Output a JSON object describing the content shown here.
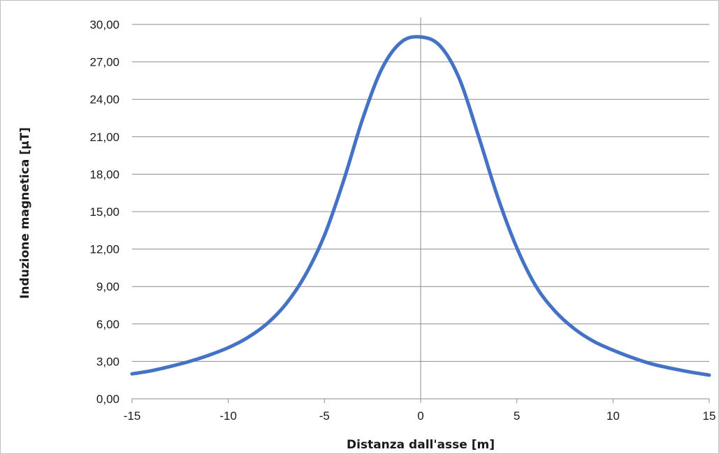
{
  "chart_data": {
    "type": "line",
    "title": "",
    "xlabel": "Distanza dall'asse [m]",
    "ylabel": "Induzione magnetica [µT]",
    "xlim": [
      -15,
      15
    ],
    "ylim": [
      0,
      30
    ],
    "x_ticks": [
      -15,
      -10,
      -5,
      0,
      5,
      10,
      15
    ],
    "x_tick_labels": [
      "-15",
      "-10",
      "-5",
      "0",
      "5",
      "10",
      "15"
    ],
    "y_ticks": [
      0,
      3,
      6,
      9,
      12,
      15,
      18,
      21,
      24,
      27,
      30
    ],
    "y_tick_labels": [
      "0,00",
      "3,00",
      "6,00",
      "9,00",
      "12,00",
      "15,00",
      "18,00",
      "21,00",
      "24,00",
      "27,00",
      "30,00"
    ],
    "grid": "horizontal",
    "legend": "none",
    "series_color": "#4472c4",
    "series": [
      {
        "x": [
          -15,
          -14,
          -13,
          -12,
          -11,
          -10,
          -9,
          -8,
          -7,
          -6,
          -5,
          -4,
          -3,
          -2,
          -1,
          0,
          1,
          2,
          3,
          4,
          5,
          6,
          7,
          8,
          9,
          10,
          11,
          12,
          13,
          14,
          15
        ],
        "values": [
          2.0,
          2.25,
          2.6,
          3.0,
          3.5,
          4.1,
          4.9,
          6.0,
          7.6,
          9.9,
          13.1,
          17.5,
          22.5,
          26.5,
          28.6,
          29.0,
          28.3,
          25.7,
          21.1,
          16.2,
          12.1,
          9.0,
          7.0,
          5.6,
          4.6,
          3.9,
          3.3,
          2.8,
          2.45,
          2.15,
          1.9
        ]
      }
    ]
  }
}
